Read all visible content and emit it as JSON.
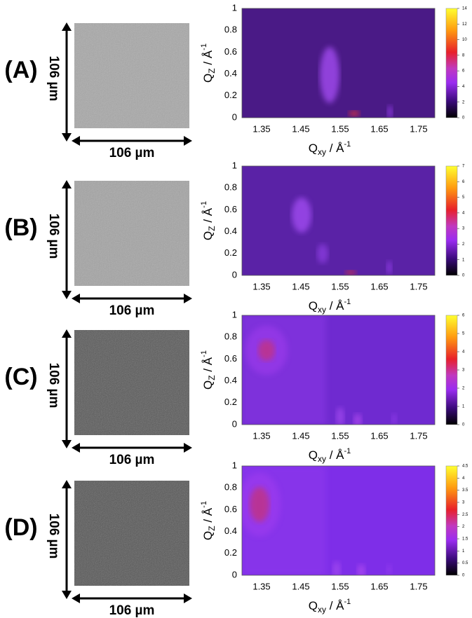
{
  "panels": [
    {
      "label": "(A)",
      "scale_x": "106 µm",
      "scale_y": "106 µm",
      "y_label": {
        "symbol": "Q",
        "subscript": "Z",
        "unit": " / Å",
        "superscript": "-1"
      },
      "x_label": {
        "symbol": "Q",
        "subscript": "xy",
        "unit": " / Å",
        "superscript": "-1"
      },
      "y_ticks": [
        "0",
        "0.2",
        "0.4",
        "0.6",
        "0.8",
        "1"
      ],
      "x_ticks": [
        "1.35",
        "1.45",
        "1.55",
        "1.65",
        "1.75"
      ],
      "colorbar_ticks": [
        "0",
        "2",
        "4",
        "6",
        "8",
        "10",
        "12",
        "14"
      ]
    },
    {
      "label": "(B)",
      "scale_x": "106 µm",
      "scale_y": "106 µm",
      "y_label": {
        "symbol": "Q",
        "subscript": "Z",
        "unit": " / Å",
        "superscript": "-1"
      },
      "x_label": {
        "symbol": "Q",
        "subscript": "xy",
        "unit": " / Å",
        "superscript": "-1"
      },
      "y_ticks": [
        "0",
        "0.2",
        "0.4",
        "0.6",
        "0.8",
        "1"
      ],
      "x_ticks": [
        "1.35",
        "1.45",
        "1.55",
        "1.65",
        "1.75"
      ],
      "colorbar_ticks": [
        "0",
        "1",
        "2",
        "3",
        "4",
        "5",
        "6",
        "7"
      ]
    },
    {
      "label": "(C)",
      "scale_x": "106 µm",
      "scale_y": "106 µm",
      "y_label": {
        "symbol": "Q",
        "subscript": "Z",
        "unit": " / Å",
        "superscript": "-1"
      },
      "x_label": {
        "symbol": "Q",
        "subscript": "xy",
        "unit": " / Å",
        "superscript": "-1"
      },
      "y_ticks": [
        "0",
        "0.2",
        "0.4",
        "0.6",
        "0.8",
        "1"
      ],
      "x_ticks": [
        "1.35",
        "1.45",
        "1.55",
        "1.65",
        "1.75"
      ],
      "colorbar_ticks": [
        "0",
        "1",
        "2",
        "3",
        "4",
        "5",
        "6"
      ]
    },
    {
      "label": "(D)",
      "scale_x": "106 µm",
      "scale_y": "106 µm",
      "y_label": {
        "symbol": "Q",
        "subscript": "Z",
        "unit": " / Å",
        "superscript": "-1"
      },
      "x_label": {
        "symbol": "Q",
        "subscript": "xy",
        "unit": " / Å",
        "superscript": "-1"
      },
      "y_ticks": [
        "0",
        "0.2",
        "0.4",
        "0.6",
        "0.8",
        "1"
      ],
      "x_ticks": [
        "1.35",
        "1.45",
        "1.55",
        "1.65",
        "1.75"
      ],
      "colorbar_ticks": [
        "0",
        "0.5",
        "1",
        "1.5",
        "2",
        "2.5",
        "3",
        "3.5",
        "4",
        "4.5"
      ]
    }
  ]
}
